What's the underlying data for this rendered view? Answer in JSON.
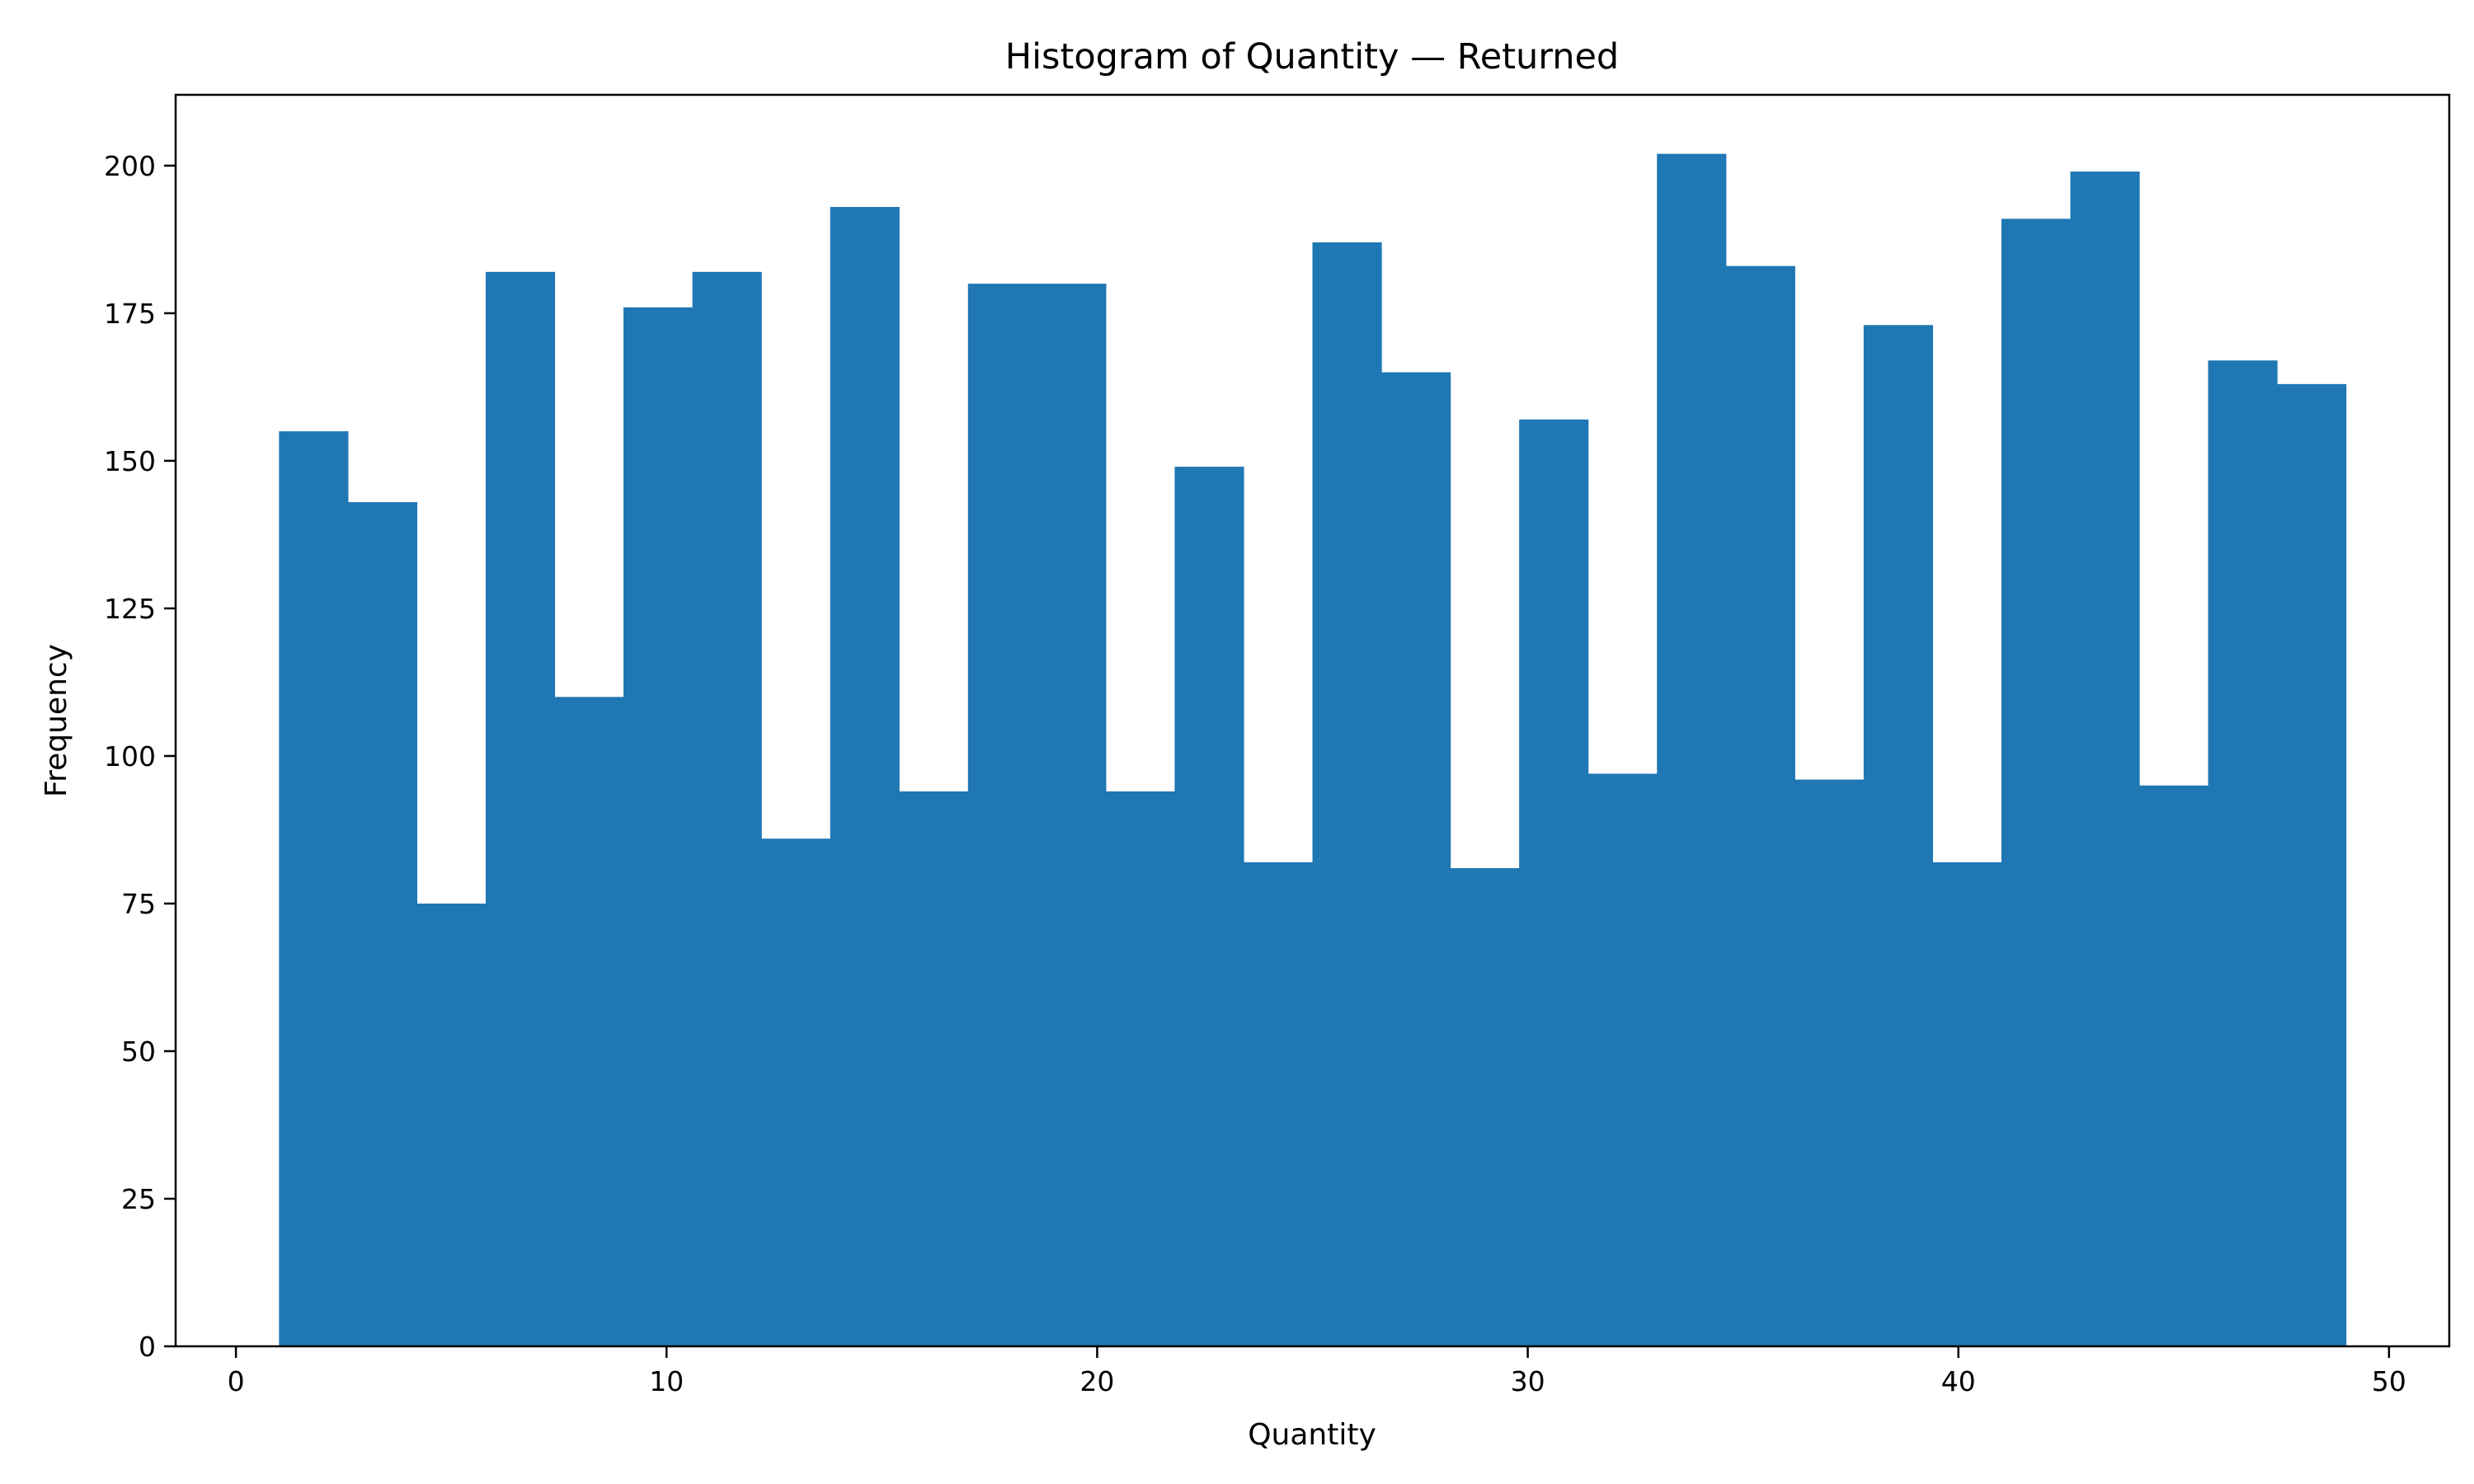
{
  "chart_data": {
    "type": "bar",
    "title": "Histogram of Quantity — Returned",
    "xlabel": "Quantity",
    "ylabel": "Frequency",
    "bin_start": 1,
    "bin_end": 49,
    "bin_count": 30,
    "values": [
      155,
      143,
      75,
      182,
      110,
      176,
      182,
      86,
      193,
      94,
      180,
      180,
      94,
      149,
      82,
      187,
      165,
      81,
      157,
      97,
      202,
      183,
      96,
      173,
      82,
      191,
      199,
      95,
      167,
      163
    ],
    "xlim": [
      -1.4,
      51.4
    ],
    "ylim": [
      0,
      212
    ],
    "xticks": [
      0,
      10,
      20,
      30,
      40,
      50
    ],
    "yticks": [
      0,
      25,
      50,
      75,
      100,
      125,
      150,
      175,
      200
    ],
    "color": "#1f77b4",
    "grid": false,
    "legend": "none"
  }
}
